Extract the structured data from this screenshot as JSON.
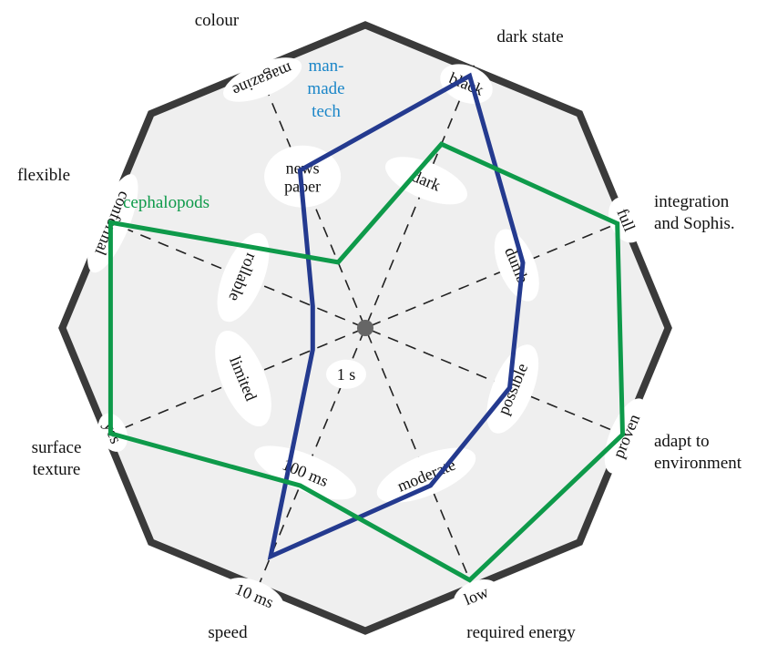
{
  "chart_data": {
    "type": "radar",
    "axes": [
      {
        "name": "dark state",
        "outer_label": "black",
        "inner_labels": [
          "dark",
          "dumb"
        ]
      },
      {
        "name": "integration\nand Sophis.",
        "outer_label": "full",
        "inner_labels": [
          "dumb"
        ]
      },
      {
        "name": "adapt to\nenvironment",
        "outer_label": "proven",
        "inner_labels": [
          "possible"
        ]
      },
      {
        "name": "required energy",
        "outer_label": "low",
        "inner_labels": [
          "moderate"
        ]
      },
      {
        "name": "speed",
        "outer_label": "10 ms",
        "inner_labels": [
          "100 ms",
          "1 s"
        ]
      },
      {
        "name": "surface\ntexture",
        "outer_label": "yes",
        "inner_labels": [
          "limited"
        ]
      },
      {
        "name": "flexible",
        "outer_label": "conformal",
        "inner_labels": [
          "rollable"
        ]
      },
      {
        "name": "colour",
        "outer_label": "magazine",
        "inner_labels": [
          "news\npaper"
        ]
      }
    ],
    "tick_labels": [
      "black",
      "dark",
      "full",
      "dumb",
      "proven",
      "possible",
      "low",
      "moderate",
      "10 ms",
      "100 ms",
      "1 s",
      "yes",
      "limited",
      "conformal",
      "rollable",
      "magazine",
      "news paper"
    ],
    "series": [
      {
        "name": "man-\nmade\ntech",
        "color": "#243a8f",
        "values": [
          0.96,
          0.6,
          0.55,
          0.6,
          0.87,
          0.2,
          0.2,
          0.6
        ]
      },
      {
        "name": "cephalopods",
        "color": "#0e9a4a",
        "values": [
          0.7,
          0.96,
          0.98,
          0.96,
          0.6,
          0.97,
          0.97,
          0.25
        ]
      }
    ],
    "range": [
      0,
      1
    ],
    "grid": "dashed spokes",
    "frame_color": "#3a3a3a",
    "background_color": "#efefef"
  }
}
